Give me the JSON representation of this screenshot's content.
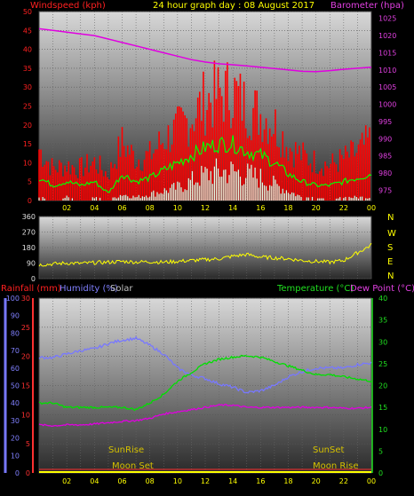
{
  "title": "24 hour graph day : 08 August 2017",
  "colors": {
    "windspeed": "#ff0000",
    "wind_avg": "#00ff00",
    "wind_low": "#e8ffe8",
    "barometer": "#e000e0",
    "wind_dir": "#ffff00",
    "humidity": "#7878ff",
    "temperature": "#00e000",
    "dew_point": "#e000e0",
    "rain": "#ffff00",
    "solar": "#ffd700",
    "sun_text": "#d4c000"
  },
  "top_panel": {
    "left_label": "Windspeed (kph)",
    "right_label": "Barometer (hpa)"
  },
  "mid_panel": {
    "compass": [
      "N",
      "W",
      "S",
      "E",
      "N"
    ]
  },
  "bottom_panel": {
    "rain_label": "Rainfall (mm)",
    "humidity_label": "Humidity (%)",
    "solar_label": "Solar",
    "temp_label": "Temperature (°C)",
    "dew_label": "Dew Point (°C)",
    "sunrise": "SunRise",
    "sunset": "SunSet",
    "moonset": "Moon Set",
    "moonrise": "Moon Rise"
  },
  "chart_data": [
    {
      "type": "line",
      "name": "wind-barometer",
      "x_ticks": [
        "02",
        "04",
        "06",
        "08",
        "10",
        "12",
        "14",
        "16",
        "18",
        "20",
        "22",
        "00"
      ],
      "x_range": [
        0,
        24
      ],
      "left_axis": {
        "label": "Windspeed (kph)",
        "ylim": [
          0,
          50
        ],
        "ticks": [
          0,
          5,
          10,
          15,
          20,
          25,
          30,
          35,
          40,
          45,
          50
        ]
      },
      "right_axis": {
        "label": "Barometer (hpa)",
        "ylim": [
          972,
          1027
        ],
        "ticks": [
          975,
          980,
          985,
          990,
          995,
          1000,
          1005,
          1010,
          1015,
          1020,
          1025
        ]
      },
      "series": [
        {
          "name": "Windspeed gust",
          "axis": "left",
          "x": [
            0,
            1,
            2,
            3,
            4,
            5,
            6,
            7,
            8,
            9,
            10,
            11,
            12,
            13,
            14,
            15,
            16,
            17,
            18,
            19,
            20,
            21,
            22,
            23,
            24
          ],
          "values": [
            16,
            10,
            11,
            10,
            12,
            8,
            18,
            13,
            14,
            19,
            22,
            26,
            31,
            33,
            34,
            29,
            27,
            24,
            17,
            14,
            12,
            11,
            13,
            15,
            19
          ]
        },
        {
          "name": "Windspeed average",
          "axis": "left",
          "x": [
            0,
            1,
            2,
            3,
            4,
            5,
            6,
            7,
            8,
            9,
            10,
            11,
            12,
            13,
            14,
            15,
            16,
            17,
            18,
            19,
            20,
            21,
            22,
            23,
            24
          ],
          "values": [
            6,
            4,
            5,
            4,
            5,
            2,
            7,
            5,
            6,
            8,
            10,
            12,
            14,
            15,
            15,
            13,
            12,
            10,
            7,
            5,
            4,
            4,
            5,
            6,
            7
          ]
        },
        {
          "name": "Windspeed low",
          "axis": "left",
          "x": [
            0,
            1,
            2,
            3,
            4,
            5,
            6,
            7,
            8,
            9,
            10,
            11,
            12,
            13,
            14,
            15,
            16,
            17,
            18,
            19,
            20,
            21,
            22,
            23,
            24
          ],
          "values": [
            1,
            0,
            1,
            0,
            1,
            0,
            2,
            1,
            2,
            3,
            4,
            6,
            8,
            9,
            9,
            8,
            7,
            5,
            3,
            1,
            1,
            0,
            1,
            1,
            1
          ]
        },
        {
          "name": "Barometer",
          "axis": "right",
          "x": [
            0,
            1,
            2,
            3,
            4,
            5,
            6,
            7,
            8,
            9,
            10,
            11,
            12,
            13,
            14,
            15,
            16,
            17,
            18,
            19,
            20,
            21,
            22,
            23,
            24
          ],
          "values": [
            1022,
            1021.5,
            1021,
            1020.5,
            1020,
            1019,
            1018,
            1017,
            1016,
            1015,
            1014,
            1013,
            1012.3,
            1011.8,
            1011.5,
            1011.2,
            1010.8,
            1010.4,
            1010,
            1009.6,
            1009.5,
            1009.8,
            1010.2,
            1010.5,
            1010.8
          ]
        }
      ]
    },
    {
      "type": "line",
      "name": "wind-direction",
      "x_range": [
        0,
        24
      ],
      "ylim": [
        0,
        360
      ],
      "y_ticks": [
        0,
        90,
        180,
        270,
        360
      ],
      "series": [
        {
          "name": "Wind direction",
          "x": [
            0,
            1,
            2,
            3,
            4,
            5,
            6,
            7,
            8,
            9,
            10,
            11,
            12,
            13,
            14,
            15,
            16,
            17,
            18,
            19,
            20,
            21,
            22,
            23,
            24
          ],
          "values": [
            80,
            85,
            90,
            88,
            92,
            95,
            100,
            96,
            98,
            95,
            100,
            105,
            110,
            115,
            130,
            140,
            125,
            120,
            115,
            105,
            100,
            95,
            105,
            150,
            195
          ]
        }
      ]
    },
    {
      "type": "line",
      "name": "rain-humidity-temperature",
      "x_ticks": [
        "02",
        "04",
        "06",
        "08",
        "10",
        "12",
        "14",
        "16",
        "18",
        "20",
        "22",
        "00"
      ],
      "x_range": [
        0,
        24
      ],
      "humidity_axis": {
        "label": "Humidity (%)",
        "ylim": [
          0,
          100
        ],
        "ticks": [
          0,
          10,
          20,
          30,
          40,
          50,
          60,
          70,
          80,
          90,
          100
        ]
      },
      "rain_axis": {
        "label": "Rainfall (mm)",
        "ylim": [
          0,
          30
        ],
        "ticks": [
          0,
          5,
          10,
          15,
          20,
          25,
          30
        ]
      },
      "temp_axis": {
        "label": "Temperature (°C)",
        "ylim": [
          0,
          40
        ],
        "ticks": [
          0,
          5,
          10,
          15,
          20,
          25,
          30,
          35,
          40
        ]
      },
      "series": [
        {
          "name": "Humidity",
          "axis": "humidity",
          "x": [
            0,
            1,
            2,
            3,
            4,
            5,
            6,
            7,
            8,
            9,
            10,
            11,
            12,
            13,
            14,
            15,
            16,
            17,
            18,
            19,
            20,
            21,
            22,
            23,
            24
          ],
          "values": [
            66,
            66,
            68,
            70,
            71,
            74,
            76,
            77,
            73,
            68,
            60,
            56,
            54,
            51,
            49,
            46,
            47,
            50,
            55,
            58,
            60,
            60,
            60,
            62,
            63
          ]
        },
        {
          "name": "Temperature",
          "axis": "temp",
          "x": [
            0,
            1,
            2,
            3,
            4,
            5,
            6,
            7,
            8,
            9,
            10,
            11,
            12,
            13,
            14,
            15,
            16,
            17,
            18,
            19,
            20,
            21,
            22,
            23,
            24
          ],
          "values": [
            16,
            16,
            15,
            15,
            15,
            15,
            15,
            14.5,
            16,
            18,
            21,
            23,
            25,
            26,
            26.5,
            26.8,
            26.5,
            25.5,
            24.5,
            23.5,
            22.5,
            22.5,
            22,
            21.5,
            21
          ]
        },
        {
          "name": "Dew Point",
          "axis": "temp",
          "x": [
            0,
            1,
            2,
            3,
            4,
            5,
            6,
            7,
            8,
            9,
            10,
            11,
            12,
            13,
            14,
            15,
            16,
            17,
            18,
            19,
            20,
            21,
            22,
            23,
            24
          ],
          "values": [
            11,
            10.8,
            11,
            11,
            11.2,
            11.5,
            11.8,
            12,
            12.5,
            13.5,
            14,
            14.5,
            15,
            15.5,
            15.5,
            15,
            15,
            15,
            15,
            15,
            15,
            15,
            14.8,
            14.8,
            15
          ]
        },
        {
          "name": "Rainfall",
          "axis": "rain",
          "x": [
            0,
            24
          ],
          "values": [
            0,
            0
          ]
        }
      ]
    }
  ]
}
